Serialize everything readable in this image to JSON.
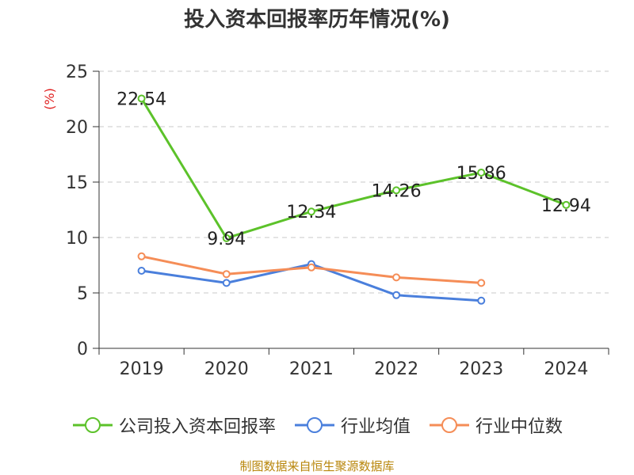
{
  "title": "投入资本回报率历年情况(%)",
  "source": "制图数据来自恒生聚源数据库",
  "chart_data": {
    "type": "line",
    "title": "投入资本回报率历年情况(%)",
    "ylabel": "(%)",
    "xlabel": "",
    "categories": [
      "2019",
      "2020",
      "2021",
      "2022",
      "2023",
      "2024"
    ],
    "ylim": [
      0,
      25
    ],
    "yticks": [
      0,
      5,
      10,
      15,
      20,
      25
    ],
    "grid": true,
    "legend_position": "bottom",
    "series": [
      {
        "name": "公司投入资本回报率",
        "color": "#5cc22a",
        "values": [
          22.54,
          9.94,
          12.34,
          14.26,
          15.86,
          12.94
        ],
        "labels": [
          "22.54",
          "9.94",
          "12.34",
          "14.26",
          "15.86",
          "12.94"
        ]
      },
      {
        "name": "行业均值",
        "color": "#4a7fdc",
        "values": [
          7.0,
          5.9,
          7.6,
          4.8,
          4.3,
          null
        ]
      },
      {
        "name": "行业中位数",
        "color": "#f58d57",
        "values": [
          8.3,
          6.7,
          7.3,
          6.4,
          5.9,
          null
        ]
      }
    ]
  }
}
